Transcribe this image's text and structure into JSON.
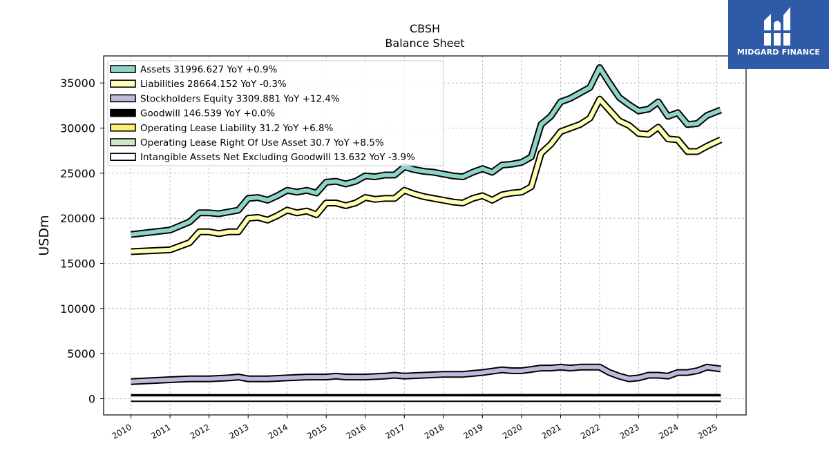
{
  "brand": {
    "name": "MIDGARD FINANCE",
    "bg_color": "#2f5aa8"
  },
  "chart_data": {
    "type": "line",
    "title": "CBSH",
    "subtitle": "Balance  Sheet",
    "ylabel": "USDm",
    "xlabel": "",
    "ylim": [
      -1800,
      38000
    ],
    "xlim": [
      2009.3,
      2025.75
    ],
    "yticks": [
      0,
      5000,
      10000,
      15000,
      20000,
      25000,
      30000,
      35000
    ],
    "xticks": [
      2010,
      2011,
      2012,
      2013,
      2014,
      2015,
      2016,
      2017,
      2018,
      2019,
      2020,
      2021,
      2022,
      2023,
      2024,
      2025
    ],
    "grid": true,
    "legend_position": "top-left",
    "series": [
      {
        "name": "Assets",
        "legend": "Assets  31996.627 YoY +0.9%",
        "color": "#8dd3c7",
        "points": [
          [
            2010,
            18200
          ],
          [
            2011,
            18700
          ],
          [
            2011.5,
            19600
          ],
          [
            2011.75,
            20600
          ],
          [
            2012,
            20600
          ],
          [
            2012.25,
            20500
          ],
          [
            2012.5,
            20700
          ],
          [
            2012.75,
            20900
          ],
          [
            2013,
            22200
          ],
          [
            2013.25,
            22300
          ],
          [
            2013.5,
            22000
          ],
          [
            2013.75,
            22500
          ],
          [
            2014,
            23100
          ],
          [
            2014.25,
            22900
          ],
          [
            2014.5,
            23100
          ],
          [
            2014.75,
            22800
          ],
          [
            2015,
            24000
          ],
          [
            2015.25,
            24100
          ],
          [
            2015.5,
            23800
          ],
          [
            2015.75,
            24100
          ],
          [
            2016,
            24700
          ],
          [
            2016.25,
            24600
          ],
          [
            2016.5,
            24800
          ],
          [
            2016.75,
            24800
          ],
          [
            2017,
            25700
          ],
          [
            2017.25,
            25400
          ],
          [
            2017.5,
            25200
          ],
          [
            2017.75,
            25100
          ],
          [
            2018,
            24900
          ],
          [
            2018.25,
            24700
          ],
          [
            2018.5,
            24600
          ],
          [
            2018.75,
            25100
          ],
          [
            2019,
            25500
          ],
          [
            2019.25,
            25100
          ],
          [
            2019.5,
            25900
          ],
          [
            2019.75,
            26000
          ],
          [
            2020,
            26200
          ],
          [
            2020.25,
            26800
          ],
          [
            2020.5,
            30400
          ],
          [
            2020.75,
            31300
          ],
          [
            2021,
            32900
          ],
          [
            2021.25,
            33300
          ],
          [
            2021.5,
            33900
          ],
          [
            2021.75,
            34500
          ],
          [
            2022,
            36700
          ],
          [
            2022.25,
            35000
          ],
          [
            2022.5,
            33400
          ],
          [
            2022.75,
            32600
          ],
          [
            2023,
            31900
          ],
          [
            2023.25,
            32100
          ],
          [
            2023.5,
            32900
          ],
          [
            2023.75,
            31300
          ],
          [
            2024,
            31700
          ],
          [
            2024.25,
            30400
          ],
          [
            2024.5,
            30500
          ],
          [
            2024.75,
            31400
          ],
          [
            2025.1,
            32000
          ]
        ]
      },
      {
        "name": "Liabilities",
        "legend": "Liabilities  28664.152 YoY -0.3%",
        "color": "#ffffb3",
        "points": [
          [
            2010,
            16300
          ],
          [
            2011,
            16500
          ],
          [
            2011.5,
            17300
          ],
          [
            2011.75,
            18500
          ],
          [
            2012,
            18500
          ],
          [
            2012.25,
            18300
          ],
          [
            2012.5,
            18500
          ],
          [
            2012.75,
            18500
          ],
          [
            2013,
            20000
          ],
          [
            2013.25,
            20100
          ],
          [
            2013.5,
            19800
          ],
          [
            2013.75,
            20300
          ],
          [
            2014,
            20900
          ],
          [
            2014.25,
            20600
          ],
          [
            2014.5,
            20800
          ],
          [
            2014.75,
            20400
          ],
          [
            2015,
            21700
          ],
          [
            2015.25,
            21700
          ],
          [
            2015.5,
            21400
          ],
          [
            2015.75,
            21700
          ],
          [
            2016,
            22300
          ],
          [
            2016.25,
            22100
          ],
          [
            2016.5,
            22200
          ],
          [
            2016.75,
            22200
          ],
          [
            2017,
            23100
          ],
          [
            2017.25,
            22700
          ],
          [
            2017.5,
            22400
          ],
          [
            2017.75,
            22200
          ],
          [
            2018,
            22000
          ],
          [
            2018.25,
            21800
          ],
          [
            2018.5,
            21700
          ],
          [
            2018.75,
            22200
          ],
          [
            2019,
            22500
          ],
          [
            2019.25,
            22000
          ],
          [
            2019.5,
            22600
          ],
          [
            2019.75,
            22800
          ],
          [
            2020,
            22900
          ],
          [
            2020.25,
            23500
          ],
          [
            2020.5,
            27200
          ],
          [
            2020.75,
            28200
          ],
          [
            2021,
            29600
          ],
          [
            2021.25,
            30000
          ],
          [
            2021.5,
            30400
          ],
          [
            2021.75,
            31100
          ],
          [
            2022,
            33200
          ],
          [
            2022.25,
            32000
          ],
          [
            2022.5,
            30800
          ],
          [
            2022.75,
            30300
          ],
          [
            2023,
            29400
          ],
          [
            2023.25,
            29300
          ],
          [
            2023.5,
            30100
          ],
          [
            2023.75,
            28800
          ],
          [
            2024,
            28700
          ],
          [
            2024.25,
            27400
          ],
          [
            2024.5,
            27400
          ],
          [
            2024.75,
            28000
          ],
          [
            2025.1,
            28700
          ]
        ]
      },
      {
        "name": "Stockholders Equity",
        "legend": "Stockholders Equity  3309.881 YoY +12.4%",
        "color": "#bebada",
        "points": [
          [
            2010,
            1900
          ],
          [
            2011,
            2100
          ],
          [
            2011.5,
            2200
          ],
          [
            2012,
            2200
          ],
          [
            2012.5,
            2300
          ],
          [
            2012.75,
            2400
          ],
          [
            2013,
            2200
          ],
          [
            2013.25,
            2200
          ],
          [
            2013.5,
            2200
          ],
          [
            2014,
            2300
          ],
          [
            2014.5,
            2400
          ],
          [
            2015,
            2400
          ],
          [
            2015.25,
            2500
          ],
          [
            2015.5,
            2400
          ],
          [
            2016,
            2400
          ],
          [
            2016.5,
            2500
          ],
          [
            2016.75,
            2600
          ],
          [
            2017,
            2500
          ],
          [
            2017.5,
            2600
          ],
          [
            2018,
            2700
          ],
          [
            2018.5,
            2700
          ],
          [
            2018.75,
            2800
          ],
          [
            2019,
            2900
          ],
          [
            2019.5,
            3200
          ],
          [
            2019.75,
            3100
          ],
          [
            2020,
            3100
          ],
          [
            2020.5,
            3400
          ],
          [
            2020.75,
            3400
          ],
          [
            2021,
            3500
          ],
          [
            2021.25,
            3400
          ],
          [
            2021.5,
            3500
          ],
          [
            2021.75,
            3500
          ],
          [
            2022,
            3500
          ],
          [
            2022.25,
            2900
          ],
          [
            2022.5,
            2500
          ],
          [
            2022.75,
            2200
          ],
          [
            2023,
            2300
          ],
          [
            2023.25,
            2600
          ],
          [
            2023.5,
            2600
          ],
          [
            2023.75,
            2500
          ],
          [
            2024,
            2900
          ],
          [
            2024.25,
            2900
          ],
          [
            2024.5,
            3100
          ],
          [
            2024.75,
            3500
          ],
          [
            2025.1,
            3300
          ]
        ]
      },
      {
        "name": "Goodwill",
        "legend": "Goodwill  146.539 YoY +0.0%",
        "color": "#000000",
        "points": [
          [
            2010,
            130
          ],
          [
            2025.1,
            147
          ]
        ]
      },
      {
        "name": "Operating Lease Liability",
        "legend": "Operating Lease Liability  31.2 YoY +6.8%",
        "color": "#ffed6f",
        "points": [
          [
            2019,
            29
          ],
          [
            2025.1,
            31.2
          ]
        ]
      },
      {
        "name": "Operating Lease Right Of Use Asset",
        "legend": "Operating Lease Right Of Use Asset  30.7 YoY +8.5%",
        "color": "#ccebc5",
        "points": [
          [
            2019,
            28
          ],
          [
            2025.1,
            30.7
          ]
        ]
      },
      {
        "name": "Intangible Assets Net Excluding Goodwill",
        "legend": "Intangible Assets Net Excluding Goodwill  13.632 YoY -3.9%",
        "color": "#ffffff",
        "points": [
          [
            2010,
            20
          ],
          [
            2025.1,
            13.6
          ]
        ]
      }
    ]
  }
}
